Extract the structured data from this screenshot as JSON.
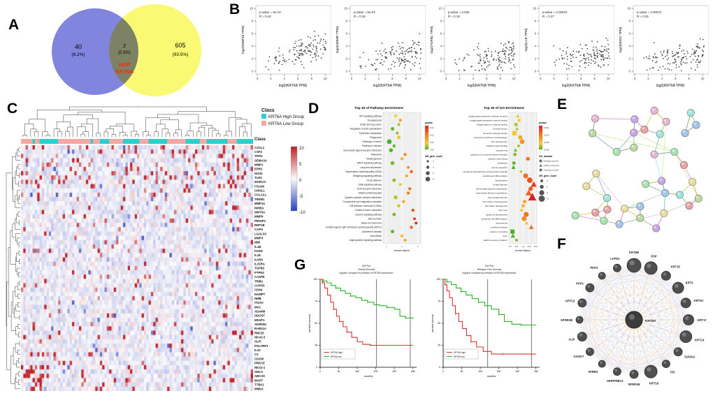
{
  "panels": {
    "a": {
      "letter": "A"
    },
    "b": {
      "letter": "B"
    },
    "c": {
      "letter": "C"
    },
    "d": {
      "letter": "D"
    },
    "e": {
      "letter": "E"
    },
    "f": {
      "letter": "F"
    },
    "g": {
      "letter": "G"
    }
  },
  "colors": {
    "venn_left": "#6f74d8",
    "venn_right": "#f8f861",
    "overlap_gene": "#ff2400",
    "class_high": "#29d0d0",
    "class_low": "#f4a7a3",
    "km_high": "#e03030",
    "km_low": "#28b428"
  },
  "chart_data": [
    {
      "id": "venn",
      "type": "venn",
      "left": {
        "count": "40",
        "pct": "(6.2%)"
      },
      "middle": {
        "count": "2",
        "pct": "(0.3%)"
      },
      "right": {
        "count": "605",
        "pct": "(93.5%)"
      },
      "overlap_genes": [
        "IAPP",
        "KRT6A"
      ]
    },
    {
      "id": "scatters",
      "type": "scatter",
      "xlabel": "log2(KRT6A TPM)",
      "x_ticks": [
        0,
        2,
        4,
        6,
        8,
        10
      ],
      "n_points": 130,
      "plots": [
        {
          "ylabel": "log2(MMP28 TPM)",
          "p_label": "p-value = 5e-10",
          "r_label": "R = 0.44",
          "r": 0.44,
          "seed": 11
        },
        {
          "ylabel": "log2(HMMR TPM)",
          "p_label": "p-value = 5e-04",
          "r_label": "R = 0.29",
          "r": 0.29,
          "seed": 22
        },
        {
          "ylabel": "log2(TGFB1 TPM)",
          "p_label": "p-value = 0.026",
          "r_label": "R = 0.18",
          "r": 0.18,
          "seed": 33
        },
        {
          "ylabel": "log2(IL18 TPM)",
          "p_label": "p-value = 0.00024",
          "r_label": "R = 0.27",
          "r": 0.27,
          "seed": 44
        },
        {
          "ylabel": "log2(NOD2 TPM)",
          "p_label": "p-value = 0.00072",
          "r_label": "R = 0.25",
          "r": 0.25,
          "seed": 55
        }
      ]
    },
    {
      "id": "heatmap",
      "type": "heatmap",
      "legend_title": "Class",
      "legend_items": [
        {
          "label": "KRT6A High Group",
          "color": "#29d0d0"
        },
        {
          "label": "KRT6A Low Group",
          "color": "#f4a7a3"
        }
      ],
      "class_row_label": "Class",
      "colorbar_ticks": [
        "10",
        "5",
        "0",
        "-5",
        "-10"
      ],
      "n_samples": 100,
      "seed": 5,
      "genes": [
        "CXCL1",
        "CSF2",
        "TFPI2",
        "SEMA3A",
        "MMP1",
        "EPR2",
        "NOS2",
        "TLR2",
        "MARCO",
        "ITGAM",
        "CHI3L1",
        "COL1A1",
        "TREM1",
        "MMP14",
        "INHBA",
        "WNT5A",
        "MMP9",
        "PMAIP1",
        "RRP1B",
        "CAPG",
        "LGALS3",
        "MMP3",
        "NMI",
        "IL1B",
        "FADD",
        "IL18",
        "KARS",
        "IL31RA",
        "TGFB2",
        "PTPN2",
        "CASP8",
        "TRIB1",
        "COPS5",
        "CD44",
        "NAMPT",
        "NMB",
        "ITGAV",
        "MX2",
        "ADAM9",
        "DDOST",
        "ERAP1",
        "AKIRIN1",
        "RAB11A",
        "RNF25",
        "NKX2-3",
        "SLPI",
        "PGLYRP1",
        "IL33",
        "C3",
        "CD200",
        "PRKCE",
        "NKX2-1",
        "SNCA",
        "ABCA5",
        "MAPT",
        "TTBK1",
        "MMD2"
      ]
    },
    {
      "id": "pathway",
      "type": "dotplot",
      "title": "Top 30 of Pathway Enrichment",
      "xlabel": "enrich factor",
      "x_range": [
        0.8,
        3.2
      ],
      "x_ticks": [
        1,
        2,
        3
      ],
      "x_tick_labels": [
        "1",
        "2",
        "3"
      ],
      "legend": {
        "pvalue_title": "pvalue",
        "pvalue_ticks": [
          "0.01",
          "0.02",
          "0.03",
          "0.04"
        ],
        "count_title": "diff_gene_count",
        "count_sizes": [
          2,
          4,
          6,
          8
        ]
      },
      "rows": [
        [
          "Wnt signaling pathway",
          1.6,
          0.021,
          4
        ],
        [
          "Toxoplasmosis",
          1.9,
          0.012,
          4
        ],
        [
          "Small cell lung cancer",
          1.8,
          0.03,
          3
        ],
        [
          "Regulation of actin cytoskeleton",
          1.4,
          0.041,
          5
        ],
        [
          "Pyrimidine metabolism",
          1.7,
          0.035,
          3
        ],
        [
          "Phagosome",
          1.8,
          0.018,
          5
        ],
        [
          "Pathways in cancer",
          1.2,
          0.046,
          8
        ],
        [
          "Parkinson's disease",
          1.5,
          0.039,
          4
        ],
        [
          "Neuroactive ligand-receptor interaction",
          1.3,
          0.044,
          6
        ],
        [
          "Melanoma",
          2.2,
          0.009,
          4
        ],
        [
          "Melanogenesis",
          2.0,
          0.015,
          4
        ],
        [
          "MAPK signaling pathway",
          1.4,
          0.038,
          6
        ],
        [
          "Long-term depression",
          2.4,
          0.008,
          3
        ],
        [
          "Hypertrophic cardiomyopathy (HCM)",
          2.6,
          0.005,
          4
        ],
        [
          "Hedgehog signaling pathway",
          2.3,
          0.011,
          3
        ],
        [
          "Focal adhesion",
          1.5,
          0.033,
          5
        ],
        [
          "ErbB signaling pathway",
          1.9,
          0.024,
          3
        ],
        [
          "ECM-receptor interaction",
          2.5,
          0.006,
          4
        ],
        [
          "Dilated cardiomyopathy",
          2.4,
          0.007,
          4
        ],
        [
          "Cytokine-cytokine receptor interaction",
          1.6,
          0.028,
          6
        ],
        [
          "Complement and coagulation cascades",
          2.1,
          0.013,
          4
        ],
        [
          "Cell adhesion molecules (CAMs)",
          1.8,
          0.026,
          4
        ],
        [
          "Cardiac muscle contraction",
          2.7,
          0.004,
          4
        ],
        [
          "Calcium signaling pathway",
          1.5,
          0.036,
          5
        ],
        [
          "Bile secretion",
          2.8,
          0.003,
          3
        ],
        [
          "Basal cell carcinoma",
          2.9,
          0.002,
          3
        ],
        [
          "Arrhythmogenic right ventricular cardiomyopathy (ARVC)",
          2.6,
          0.005,
          4
        ],
        [
          "Alzheimer's disease",
          1.4,
          0.042,
          5
        ],
        [
          "Amoebiasis",
          2.0,
          0.016,
          4
        ],
        [
          "Adipocytokine signaling pathway",
          2.2,
          0.01,
          3
        ]
      ]
    },
    {
      "id": "go",
      "type": "dotplot",
      "title": "Top 30 of GO Enrichment",
      "xlabel": "enrich factor",
      "x_range": [
        2,
        13
      ],
      "x_ticks": [
        2.5,
        5,
        7.5,
        10,
        12.5
      ],
      "x_tick_labels": [
        "2.5",
        "5.0",
        "7.5",
        "10.0",
        "12.5"
      ],
      "legend": {
        "pvalue_title": "pvalue",
        "pvalue_ticks": [
          "0.001",
          "0.010",
          "0.025",
          "0.045"
        ],
        "domain_title": "GO_domain",
        "domains": [
          "biological_process",
          "cellular_component",
          "molecular_function"
        ],
        "count_title": "diff_gene_count",
        "count_sizes": [
          3,
          6,
          9,
          12
        ]
      },
      "rows": [
        [
          "voltage-gated potassium channel complex",
          5.5,
          0.012,
          4,
          "CC"
        ],
        [
          "voltage-gated potassium channel activity",
          6.0,
          0.01,
          4,
          "MF"
        ],
        [
          "voltage-gated ion channel activity",
          4.8,
          0.018,
          5,
          "MF"
        ],
        [
          "terminal bouton",
          5.2,
          0.02,
          3,
          "CC"
        ],
        [
          "structural molecule activity",
          4.2,
          0.008,
          9,
          "MF"
        ],
        [
          "structural constituent of cytoskeleton",
          6.5,
          0.004,
          7,
          "MF"
        ],
        [
          "skin development",
          7.2,
          0.002,
          8,
          "BP"
        ],
        [
          "scaffold protein binding",
          5.8,
          0.022,
          3,
          "MF"
        ],
        [
          "sarcolemma",
          4.6,
          0.03,
          4,
          "CC"
        ],
        [
          "potassium ion transmembrane transport",
          4.4,
          0.026,
          5,
          "BP"
        ],
        [
          "peptide cross-linking",
          9.5,
          0.001,
          6,
          "BP"
        ],
        [
          "ossification",
          4.0,
          0.034,
          5,
          "BP"
        ],
        [
          "neuron projection",
          3.8,
          0.04,
          5,
          "CC"
        ],
        [
          "membrane depolarization during action potential",
          6.8,
          0.014,
          3,
          "BP"
        ],
        [
          "keratinocyte differentiation",
          8.6,
          0.0008,
          9,
          "BP"
        ],
        [
          "keratinization",
          10.2,
          0.0004,
          10,
          "BP"
        ],
        [
          "keratin filament",
          11.8,
          0.0002,
          9,
          "CC"
        ],
        [
          "intermediate filament organization",
          10.6,
          0.0005,
          7,
          "BP"
        ],
        [
          "intermediate filament cytoskeleton",
          9.8,
          0.0006,
          10,
          "CC"
        ],
        [
          "intermediate filament",
          11.2,
          0.0001,
          14,
          "CC"
        ],
        [
          "hair follicle morphogenesis",
          8.2,
          0.003,
          5,
          "BP"
        ],
        [
          "hair follicle development",
          7.6,
          0.005,
          5,
          "BP"
        ],
        [
          "hair cycle",
          7.0,
          0.009,
          4,
          "BP"
        ],
        [
          "epidermis development",
          8.8,
          0.0009,
          9,
          "BP"
        ],
        [
          "epidermal cell differentiation",
          8.0,
          0.0015,
          8,
          "BP"
        ],
        [
          "desmosome",
          9.0,
          0.006,
          4,
          "CC"
        ],
        [
          "cornified envelope",
          10.8,
          0.0007,
          6,
          "CC"
        ],
        [
          "calcium ion binding",
          3.4,
          0.044,
          8,
          "MF"
        ],
        [
          "axon",
          3.6,
          0.038,
          6,
          "CC"
        ],
        [
          "adult locomotory behavior",
          5.0,
          0.028,
          3,
          "BP"
        ]
      ]
    },
    {
      "id": "string_net",
      "type": "network",
      "n_nodes": 36,
      "seed": 9,
      "node_palette": [
        "#e9a3a3",
        "#a3c6e9",
        "#a8e3b0",
        "#e9dca3",
        "#c9a8e3",
        "#a3e3dc",
        "#e3b8d4",
        "#bcd9a0"
      ],
      "edge_palette": [
        "#d4c24a",
        "#9a9a9a",
        "#66c2a5",
        "#e78ac3",
        "#8da0cb",
        "#a6d854"
      ]
    },
    {
      "id": "gene_net",
      "type": "circular_network",
      "center": {
        "label": "KRT6A",
        "r": 12
      },
      "edge_palette": [
        "#b8a7e0",
        "#efb98a",
        "#cfcfcf",
        "#a9c6e4"
      ],
      "nodes": [
        {
          "label": "KRT6B",
          "r": 10
        },
        {
          "label": "DSP",
          "r": 9
        },
        {
          "label": "KRT15",
          "r": 6.5
        },
        {
          "label": "KRT5",
          "r": 8
        },
        {
          "label": "KRT6C",
          "r": 7
        },
        {
          "label": "KRT17",
          "r": 7.5
        },
        {
          "label": "KRT14",
          "r": 8.5
        },
        {
          "label": "S100A2",
          "r": 6
        },
        {
          "label": "PI3",
          "r": 5.5
        },
        {
          "label": "KRT16",
          "r": 9
        },
        {
          "label": "SPRR1B",
          "r": 6
        },
        {
          "label": "SERPINB13",
          "r": 5.5
        },
        {
          "label": "SPRR3",
          "r": 5
        },
        {
          "label": "S100A7",
          "r": 5.5
        },
        {
          "label": "ALB",
          "r": 6.5
        },
        {
          "label": "SPRR2B",
          "r": 5
        },
        {
          "label": "KRT13",
          "r": 6
        },
        {
          "label": "PKP1",
          "r": 6
        },
        {
          "label": "PKP3",
          "r": 5
        },
        {
          "label": "LYPD3",
          "r": 5.5
        }
      ]
    },
    {
      "id": "km",
      "type": "km",
      "plots": [
        {
          "header": [
            "KM Plot",
            "Overall Survival",
            "logrank compare by median of KRT6A expression"
          ],
          "xlabel": "months",
          "ylabel": "percent survival",
          "x_ticks": [
            0,
            50,
            100,
            150,
            200,
            250
          ],
          "y_ticks": [
            0,
            25,
            50,
            75,
            100
          ],
          "vlines": [
            152,
            243
          ],
          "legend": [
            {
              "label": "KRT6A high",
              "color": "#e03030"
            },
            {
              "label": "KRT6A low",
              "color": "#28b428"
            }
          ],
          "high_curve": [
            [
              0,
              100
            ],
            [
              6,
              96
            ],
            [
              12,
              90
            ],
            [
              20,
              82
            ],
            [
              28,
              74
            ],
            [
              36,
              66
            ],
            [
              44,
              58
            ],
            [
              52,
              52
            ],
            [
              62,
              46
            ],
            [
              72,
              40
            ],
            [
              85,
              34
            ],
            [
              100,
              29
            ],
            [
              115,
              26
            ],
            [
              135,
              25
            ],
            [
              160,
              25
            ],
            [
              200,
              25
            ],
            [
              250,
              25
            ]
          ],
          "low_curve": [
            [
              0,
              100
            ],
            [
              8,
              98
            ],
            [
              18,
              96
            ],
            [
              30,
              93
            ],
            [
              42,
              90
            ],
            [
              55,
              87
            ],
            [
              68,
              84
            ],
            [
              82,
              81
            ],
            [
              96,
              79
            ],
            [
              112,
              76
            ],
            [
              128,
              74
            ],
            [
              145,
              71
            ],
            [
              160,
              70
            ],
            [
              180,
              68
            ],
            [
              200,
              66
            ],
            [
              215,
              58
            ],
            [
              230,
              56
            ],
            [
              250,
              55
            ]
          ]
        },
        {
          "header": [
            "KM Plot",
            "Relapse Free Survival",
            "logrank compare by median of KRT6A expression"
          ],
          "xlabel": "months",
          "ylabel": "percent survival",
          "x_ticks": [
            0,
            50,
            100,
            150,
            200,
            250
          ],
          "y_ticks": [
            0,
            25,
            50,
            75,
            100
          ],
          "vlines": [
            120,
            238
          ],
          "legend": [
            {
              "label": "KRT6A high",
              "color": "#e03030"
            },
            {
              "label": "KRT6A low",
              "color": "#28b428"
            }
          ],
          "high_curve": [
            [
              0,
              100
            ],
            [
              5,
              94
            ],
            [
              10,
              87
            ],
            [
              17,
              79
            ],
            [
              25,
              70
            ],
            [
              33,
              61
            ],
            [
              42,
              52
            ],
            [
              52,
              44
            ],
            [
              63,
              36
            ],
            [
              75,
              29
            ],
            [
              90,
              23
            ],
            [
              108,
              18
            ],
            [
              130,
              15
            ],
            [
              160,
              15
            ],
            [
              200,
              15
            ],
            [
              250,
              15
            ]
          ],
          "low_curve": [
            [
              0,
              100
            ],
            [
              10,
              97
            ],
            [
              22,
              94
            ],
            [
              35,
              90
            ],
            [
              48,
              86
            ],
            [
              62,
              82
            ],
            [
              78,
              78
            ],
            [
              95,
              74
            ],
            [
              112,
              70
            ],
            [
              130,
              66
            ],
            [
              150,
              60
            ],
            [
              165,
              52
            ],
            [
              185,
              49
            ],
            [
              210,
              48
            ],
            [
              250,
              48
            ]
          ]
        }
      ]
    }
  ]
}
